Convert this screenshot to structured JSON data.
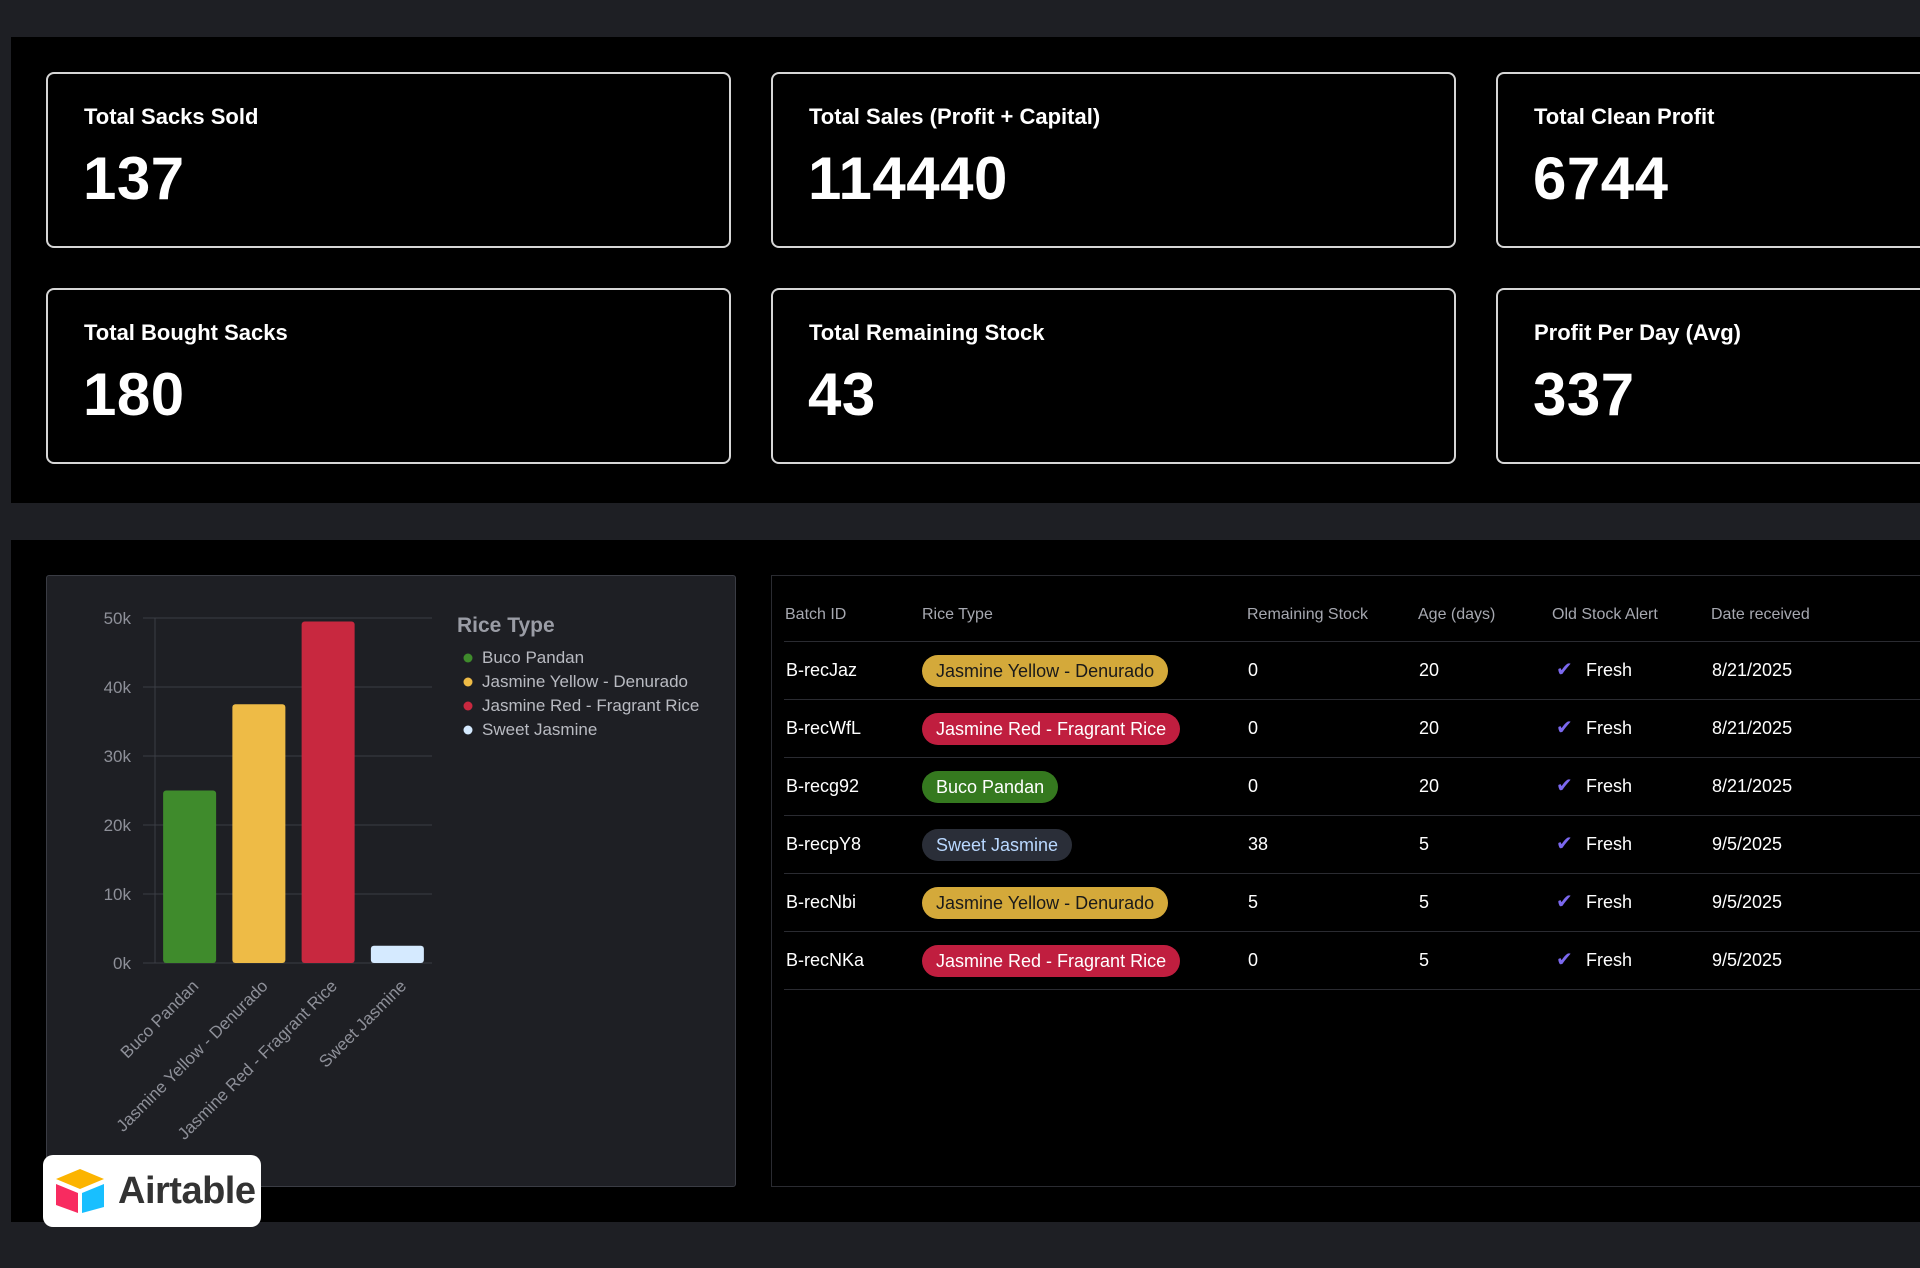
{
  "kpis": [
    {
      "label": "Total Sacks Sold",
      "value": "137"
    },
    {
      "label": "Total Sales (Profit + Capital)",
      "value": "114440"
    },
    {
      "label": "Total Clean Profit",
      "value": "6744"
    },
    {
      "label": "Total Bought Sacks",
      "value": "180"
    },
    {
      "label": "Total Remaining Stock",
      "value": "43"
    },
    {
      "label": "Profit Per Day (Avg)",
      "value": "337"
    }
  ],
  "chart_data": {
    "type": "bar",
    "categories": [
      "Buco Pandan",
      "Jasmine Yellow - Denurado",
      "Jasmine Red - Fragrant Rice",
      "Sweet Jasmine"
    ],
    "values": [
      25000,
      37500,
      49500,
      2500
    ],
    "colors": [
      "#3f8b2c",
      "#eebb46",
      "#c8283f",
      "#d5eaff"
    ],
    "ylim": [
      0,
      50000
    ],
    "yticks": [
      "0k",
      "10k",
      "20k",
      "30k",
      "40k",
      "50k"
    ],
    "legend_title": "Rice Type",
    "legend": [
      "Buco Pandan",
      "Jasmine Yellow - Denurado",
      "Jasmine Red - Fragrant Rice",
      "Sweet Jasmine"
    ],
    "legend_position": "right",
    "grid": true
  },
  "table": {
    "headers": [
      "Batch ID",
      "Rice Type",
      "Remaining Stock",
      "Age (days)",
      "Old Stock Alert",
      "Date received"
    ],
    "rows": [
      {
        "batch": "B-recJaz",
        "rice": "Jasmine Yellow - Denurado",
        "rice_color": "yellow",
        "stock": "0",
        "age": "20",
        "alert": "Fresh",
        "date": "8/21/2025"
      },
      {
        "batch": "B-recWfL",
        "rice": "Jasmine Red - Fragrant Rice",
        "rice_color": "red",
        "stock": "0",
        "age": "20",
        "alert": "Fresh",
        "date": "8/21/2025"
      },
      {
        "batch": "B-recg92",
        "rice": "Buco Pandan",
        "rice_color": "green",
        "stock": "0",
        "age": "20",
        "alert": "Fresh",
        "date": "8/21/2025"
      },
      {
        "batch": "B-recpY8",
        "rice": "Sweet Jasmine",
        "rice_color": "blue",
        "stock": "38",
        "age": "5",
        "alert": "Fresh",
        "date": "9/5/2025"
      },
      {
        "batch": "B-recNbi",
        "rice": "Jasmine Yellow - Denurado",
        "rice_color": "yellow",
        "stock": "5",
        "age": "5",
        "alert": "Fresh",
        "date": "9/5/2025"
      },
      {
        "batch": "B-recNKa",
        "rice": "Jasmine Red - Fragrant Rice",
        "rice_color": "red",
        "stock": "0",
        "age": "5",
        "alert": "Fresh",
        "date": "9/5/2025"
      }
    ]
  },
  "badge": {
    "name": "Airtable",
    "icon": "airtable-logo-icon"
  }
}
